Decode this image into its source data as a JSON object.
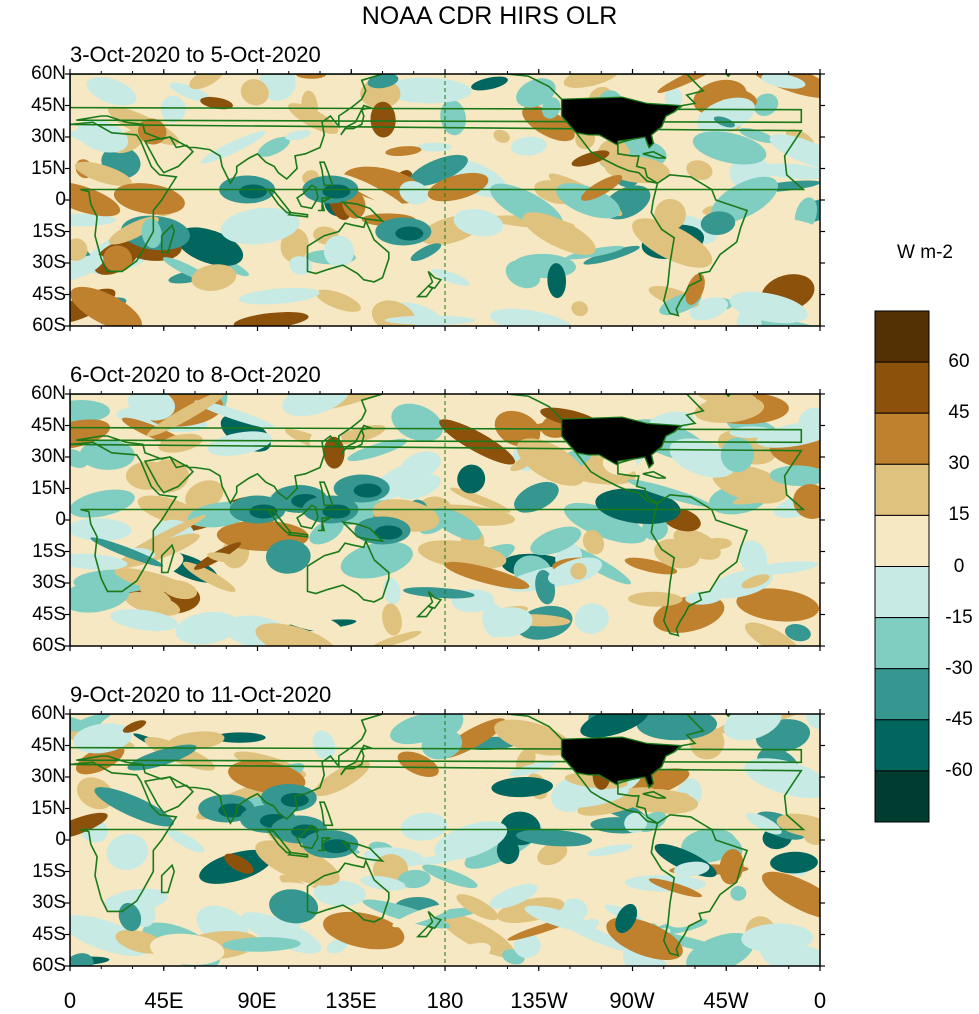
{
  "figure": {
    "title": "NOAA CDR HIRS OLR",
    "units": "W m-2"
  },
  "panels": [
    {
      "title": "3-Oct-2020 to 5-Oct-2020"
    },
    {
      "title": "6-Oct-2020 to 8-Oct-2020"
    },
    {
      "title": "9-Oct-2020 to 11-Oct-2020"
    }
  ],
  "axes": {
    "lat_labels": [
      "60N",
      "45N",
      "30N",
      "15N",
      "0",
      "15S",
      "30S",
      "45S",
      "60S"
    ],
    "lon_labels": [
      "0",
      "45E",
      "90E",
      "135E",
      "180",
      "135W",
      "90W",
      "45W",
      "0"
    ]
  },
  "colorbar": {
    "labels": [
      "60",
      "45",
      "30",
      "15",
      "0",
      "-15",
      "-30",
      "-45",
      "-60"
    ],
    "colors": [
      "#543005",
      "#8c510a",
      "#bf812d",
      "#dfc27d",
      "#f6e8c3",
      "#c7eae5",
      "#80cdc1",
      "#35978f",
      "#01665e",
      "#003c30"
    ]
  },
  "style": {
    "coast_color": "#1a7a1a",
    "us_fill": "#000000"
  }
}
